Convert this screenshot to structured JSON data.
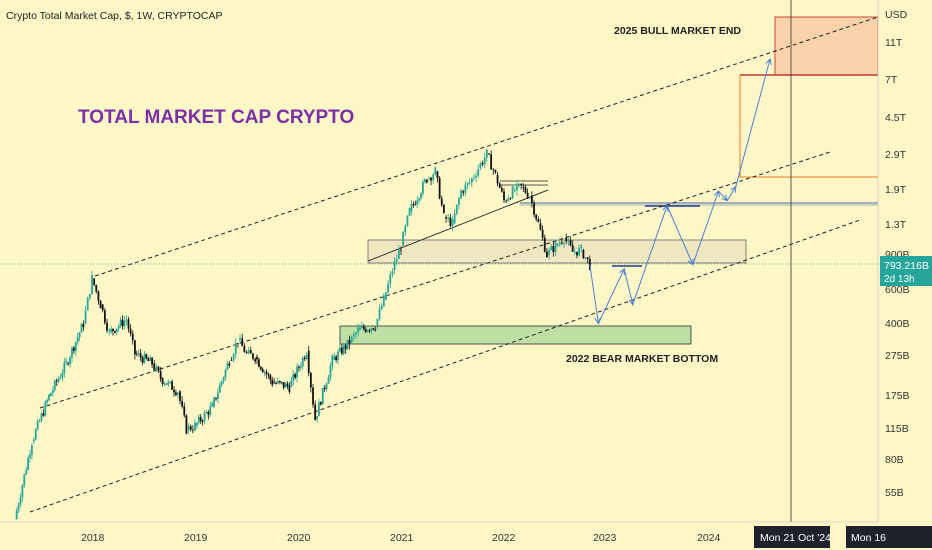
{
  "header": {
    "title": "Crypto Total Market Cap, $, 1W, CRYPTOCAP"
  },
  "chart_data": {
    "type": "candlestick",
    "title": "TOTAL MARKET CAP CRYPTO",
    "currency": "USD",
    "y_scale": "log",
    "x_ticks": [
      "2018",
      "2019",
      "2020",
      "2021",
      "2022",
      "2023",
      "2024"
    ],
    "y_ticks": [
      "11T",
      "7T",
      "4.5T",
      "2.9T",
      "1.9T",
      "1.3T",
      "900B",
      "600B",
      "400B",
      "275B",
      "175B",
      "115B",
      "80B",
      "55B"
    ],
    "current_price": {
      "value": "793.216B",
      "countdown": "2d 13h"
    },
    "crosshair_dates": [
      "Mon 21 Oct '24",
      "Mon 16"
    ],
    "annotations": [
      {
        "text": "2025 BULL MARKET END"
      },
      {
        "text": "2022 BEAR MARKET BOTTOM"
      }
    ],
    "series": [
      {
        "name": "",
        "points": [
          [
            "2017-04",
            40
          ],
          [
            "2017-06",
            100
          ],
          [
            "2017-08",
            170
          ],
          [
            "2017-10",
            250
          ],
          [
            "2017-12",
            400
          ],
          [
            "2018-01",
            680
          ],
          [
            "2018-02",
            500
          ],
          [
            "2018-03",
            360
          ],
          [
            "2018-05",
            420
          ],
          [
            "2018-06",
            280
          ],
          [
            "2018-08",
            250
          ],
          [
            "2018-09",
            210
          ],
          [
            "2018-11",
            180
          ],
          [
            "2018-12",
            115
          ],
          [
            "2019-01",
            120
          ],
          [
            "2019-03",
            150
          ],
          [
            "2019-05",
            260
          ],
          [
            "2019-06",
            330
          ],
          [
            "2019-07",
            280
          ],
          [
            "2019-08",
            270
          ],
          [
            "2019-10",
            200
          ],
          [
            "2019-12",
            190
          ],
          [
            "2020-02",
            290
          ],
          [
            "2020-03",
            130
          ],
          [
            "2020-05",
            260
          ],
          [
            "2020-07",
            320
          ],
          [
            "2020-08",
            370
          ],
          [
            "2020-10",
            390
          ],
          [
            "2020-11",
            530
          ],
          [
            "2020-12",
            750
          ],
          [
            "2021-01",
            1000
          ],
          [
            "2021-02",
            1500
          ],
          [
            "2021-04",
            2200
          ],
          [
            "2021-05",
            2400
          ],
          [
            "2021-06",
            1400
          ],
          [
            "2021-07",
            1300
          ],
          [
            "2021-08",
            1900
          ],
          [
            "2021-09",
            2100
          ],
          [
            "2021-10",
            2500
          ],
          [
            "2021-11",
            2950
          ],
          [
            "2021-12",
            2300
          ],
          [
            "2022-01",
            1700
          ],
          [
            "2022-02",
            1900
          ],
          [
            "2022-03",
            2000
          ],
          [
            "2022-04",
            1800
          ],
          [
            "2022-05",
            1300
          ],
          [
            "2022-06",
            900
          ],
          [
            "2022-07",
            1000
          ],
          [
            "2022-08",
            1100
          ],
          [
            "2022-09",
            930
          ],
          [
            "2022-10",
            950
          ],
          [
            "2022-11",
            800
          ]
        ]
      }
    ],
    "projection": [
      [
        "2022-11",
        800
      ],
      [
        "2022-12",
        400
      ],
      [
        "2023-03",
        760
      ],
      [
        "2023-04",
        500
      ],
      [
        "2023-08",
        1600
      ],
      [
        "2023-11",
        800
      ],
      [
        "2024-02",
        1900
      ],
      [
        "2024-03",
        1700
      ],
      [
        "2024-04",
        2000
      ],
      [
        "2024-08",
        9000
      ]
    ]
  }
}
